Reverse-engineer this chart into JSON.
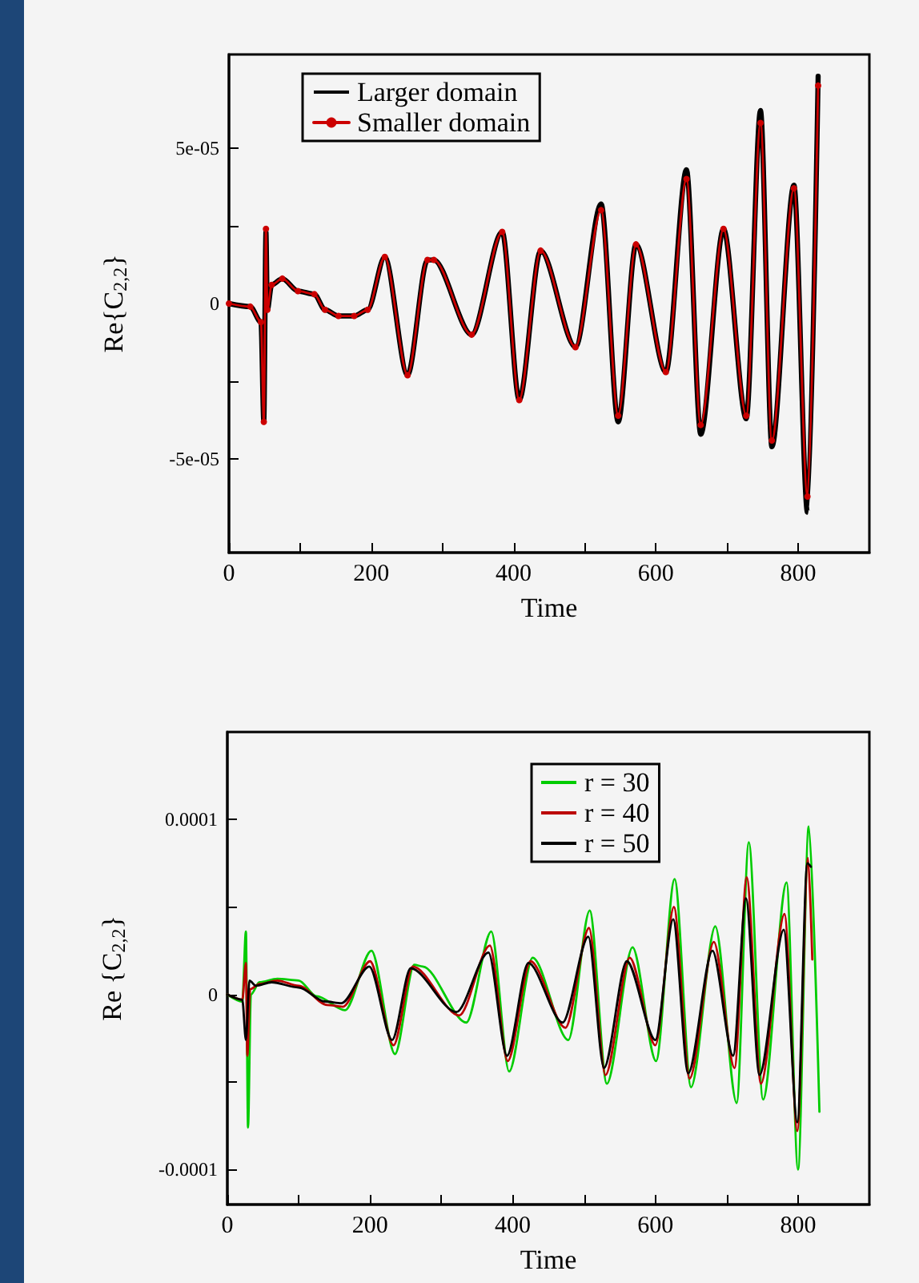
{
  "chart_data": [
    {
      "type": "line",
      "xlabel": "Time",
      "ylabel": "Re{C$_{2,2}$}",
      "xlim": [
        0,
        900
      ],
      "ylim": [
        -8e-05,
        8e-05
      ],
      "xticks": [
        0,
        {
          "value": 100,
          "label": null
        },
        200,
        {
          "value": 300,
          "label": null
        },
        400,
        {
          "value": 500,
          "label": null
        },
        600,
        {
          "value": 700,
          "label": null
        },
        800
      ],
      "yticks": [
        {
          "value": -5e-05,
          "label": "-5e-05"
        },
        {
          "value": -2.5e-05,
          "label": null
        },
        0,
        {
          "value": 2.5e-05,
          "label": null
        },
        {
          "value": 5e-05,
          "label": "5e-05"
        }
      ],
      "legend": "top left",
      "series": [
        {
          "name": "Larger domain",
          "color": "#000000",
          "marker": "none",
          "x": [
            0,
            30,
            45,
            49,
            52,
            54,
            60,
            75,
            97,
            120,
            135,
            154,
            176,
            195,
            219,
            251,
            279,
            288,
            341,
            384,
            408,
            438,
            487,
            523,
            547,
            572,
            614,
            643,
            663,
            695,
            727,
            747,
            763,
            794,
            813,
            828
          ],
          "values": [
            0,
            -1e-06,
            -6e-06,
            -3.8e-05,
            2.3e-05,
            -2e-06,
            6e-06,
            8e-06,
            4e-06,
            3e-06,
            -2e-06,
            -4e-06,
            -4e-06,
            -2e-06,
            1.5e-05,
            -2.3e-05,
            1.4e-05,
            1.4e-05,
            -1e-05,
            2.3e-05,
            -3.1e-05,
            1.7e-05,
            -1.4e-05,
            3.2e-05,
            -3.8e-05,
            1.9e-05,
            -2.2e-05,
            4.3e-05,
            -4.2e-05,
            2.4e-05,
            -3.7e-05,
            6.2e-05,
            -4.6e-05,
            3.8e-05,
            -6.7e-05,
            7.3e-05
          ]
        },
        {
          "name": "Smaller domain",
          "color": "#cc0000",
          "marker": "circle",
          "x": [
            0,
            30,
            45,
            49,
            52,
            54,
            60,
            75,
            97,
            120,
            135,
            154,
            176,
            195,
            219,
            251,
            279,
            288,
            341,
            384,
            408,
            438,
            487,
            523,
            547,
            572,
            614,
            643,
            663,
            695,
            727,
            747,
            763,
            794,
            813,
            828
          ],
          "values": [
            0,
            -1e-06,
            -6e-06,
            -3.8e-05,
            2.4e-05,
            -2e-06,
            6e-06,
            8e-06,
            4e-06,
            3e-06,
            -2e-06,
            -4e-06,
            -4e-06,
            -2e-06,
            1.5e-05,
            -2.3e-05,
            1.4e-05,
            1.4e-05,
            -1e-05,
            2.3e-05,
            -3.1e-05,
            1.7e-05,
            -1.4e-05,
            3e-05,
            -3.6e-05,
            1.9e-05,
            -2.2e-05,
            4e-05,
            -3.9e-05,
            2.4e-05,
            -3.6e-05,
            5.8e-05,
            -4.4e-05,
            3.7e-05,
            -6.2e-05,
            7e-05
          ]
        }
      ]
    },
    {
      "type": "line",
      "xlabel": "Time",
      "ylabel": "Re {C$_{2,2}$}",
      "xlim": [
        0,
        900
      ],
      "ylim": [
        -0.00012,
        0.00015
      ],
      "xticks": [
        0,
        {
          "value": 100,
          "label": null
        },
        200,
        {
          "value": 300,
          "label": null
        },
        400,
        {
          "value": 500,
          "label": null
        },
        600,
        {
          "value": 700,
          "label": null
        },
        800
      ],
      "yticks": [
        -0.0001,
        {
          "value": -5e-05,
          "label": null
        },
        0,
        {
          "value": 5e-05,
          "label": null
        },
        0.0001
      ],
      "legend": "top",
      "series": [
        {
          "name": "r = 30",
          "color": "#00cc00",
          "marker": "none",
          "x": [
            0,
            21,
            26,
            29,
            33,
            45,
            70,
            100,
            125,
            165,
            202,
            235,
            262,
            274,
            335,
            370,
            395,
            428,
            478,
            508,
            532,
            568,
            601,
            627,
            650,
            684,
            714,
            731,
            751,
            784,
            800,
            815,
            830
          ],
          "values": [
            0,
            -4e-06,
            3.6e-05,
            -7.6e-05,
            0,
            7e-06,
            9e-06,
            8e-06,
            -1e-06,
            -9e-06,
            2.5e-05,
            -3.4e-05,
            1.7e-05,
            1.6e-05,
            -1.6e-05,
            3.6e-05,
            -4.4e-05,
            2.1e-05,
            -2.6e-05,
            4.8e-05,
            -5.1e-05,
            2.7e-05,
            -3.8e-05,
            6.6e-05,
            -5.3e-05,
            3.9e-05,
            -6.2e-05,
            8.7e-05,
            -6e-05,
            6.4e-05,
            -0.0001,
            9.6e-05,
            -6.7e-05
          ]
        },
        {
          "name": "r = 40",
          "color": "#bb0000",
          "marker": "none",
          "x": [
            0,
            21,
            26,
            28,
            32,
            45,
            70,
            100,
            140,
            162,
            200,
            233,
            260,
            325,
            368,
            393,
            425,
            474,
            507,
            530,
            564,
            600,
            626,
            648,
            682,
            711,
            728,
            748,
            781,
            799,
            814,
            820
          ],
          "values": [
            0,
            -3e-06,
            1.8e-05,
            -3.5e-05,
            3e-06,
            6e-06,
            8e-06,
            5e-06,
            -6e-06,
            -7e-06,
            1.9e-05,
            -2.9e-05,
            1.6e-05,
            -1.2e-05,
            2.8e-05,
            -3.8e-05,
            1.9e-05,
            -1.9e-05,
            3.8e-05,
            -4.6e-05,
            2.1e-05,
            -2.9e-05,
            5e-05,
            -4.8e-05,
            3e-05,
            -4.2e-05,
            6.7e-05,
            -5.1e-05,
            4.6e-05,
            -7.8e-05,
            7.8e-05,
            2e-05
          ]
        },
        {
          "name": "r = 50",
          "color": "#000000",
          "marker": "none",
          "x": [
            0,
            21,
            26,
            31,
            40,
            62,
            100,
            137,
            160,
            199,
            231,
            257,
            321,
            366,
            392,
            422,
            470,
            506,
            528,
            560,
            600,
            625,
            646,
            680,
            709,
            727,
            746,
            780,
            799,
            813,
            818
          ],
          "values": [
            0,
            -3e-06,
            -2.6e-05,
            8e-06,
            5e-06,
            7e-06,
            4e-06,
            -4e-06,
            -5e-06,
            1.6e-05,
            -2.6e-05,
            1.5e-05,
            -1e-05,
            2.4e-05,
            -3.5e-05,
            1.8e-05,
            -1.6e-05,
            3.3e-05,
            -4.2e-05,
            1.9e-05,
            -2.6e-05,
            4.3e-05,
            -4.5e-05,
            2.5e-05,
            -3.5e-05,
            5.5e-05,
            -4.6e-05,
            3.7e-05,
            -7.3e-05,
            7.5e-05,
            7.3e-05
          ]
        }
      ]
    }
  ]
}
